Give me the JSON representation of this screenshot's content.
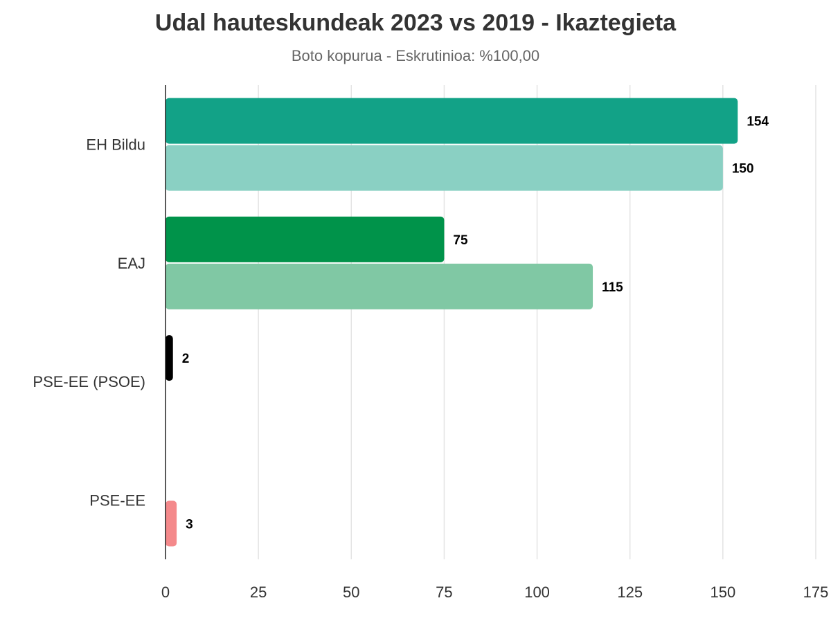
{
  "chart_data": {
    "type": "bar",
    "orientation": "horizontal",
    "title": "Udal hauteskundeak 2023 vs 2019 - Ikaztegieta",
    "subtitle": "Boto kopurua - Eskrutinioa: %100,00",
    "xlim": [
      0,
      175
    ],
    "xticks": [
      "0",
      "25",
      "50",
      "75",
      "100",
      "125",
      "150",
      "175"
    ],
    "xtick_values": [
      0,
      25,
      50,
      75,
      100,
      125,
      150,
      175
    ],
    "grid": "vertical",
    "categories": [
      "EH Bildu",
      "EAJ",
      "PSE-EE (PSOE)",
      "PSE-EE"
    ],
    "series": [
      {
        "values": [
          154,
          75,
          2,
          null
        ],
        "labels": [
          "154",
          "75",
          "2",
          ""
        ],
        "colors": [
          "#12a287",
          "#00934a",
          "#000000",
          ""
        ]
      },
      {
        "values": [
          150,
          115,
          null,
          3
        ],
        "labels": [
          "150",
          "115",
          "",
          "3"
        ],
        "colors": [
          "#8ad0c3",
          "#80c8a4",
          "",
          "#f4898b"
        ]
      }
    ]
  }
}
